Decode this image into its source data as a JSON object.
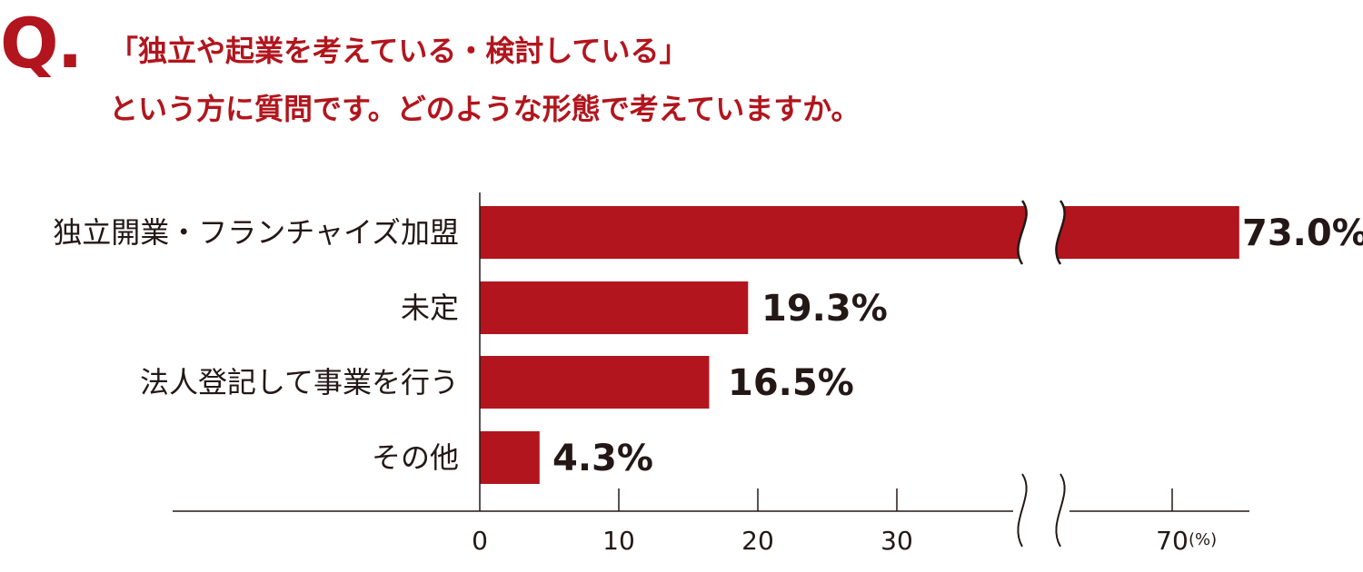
{
  "question": {
    "mark": "Q.",
    "line1": "「独立や起業を考えている・検討している」",
    "line2": "という方に質問です。どのような形態で考えていますか。"
  },
  "colors": {
    "accent": "#b2151d",
    "text": "#231815",
    "axis": "#231815",
    "background": "#ffffff"
  },
  "chart_data": {
    "type": "bar",
    "orientation": "horizontal",
    "categories": [
      "独立開業・フランチャイズ加盟",
      "未定",
      "法人登記して事業を行う",
      "その他"
    ],
    "values": [
      73.0,
      19.3,
      16.5,
      4.3
    ],
    "value_labels": [
      "73.0%",
      "19.3%",
      "16.5%",
      "4.3%"
    ],
    "xticks": [
      0,
      10,
      20,
      30,
      70
    ],
    "xtick_labels": [
      "0",
      "10",
      "20",
      "30",
      "70"
    ],
    "unit_label": "(%)",
    "axis_break": [
      38,
      65
    ],
    "xlim": [
      0,
      75
    ],
    "grid": false,
    "legend": "none"
  }
}
